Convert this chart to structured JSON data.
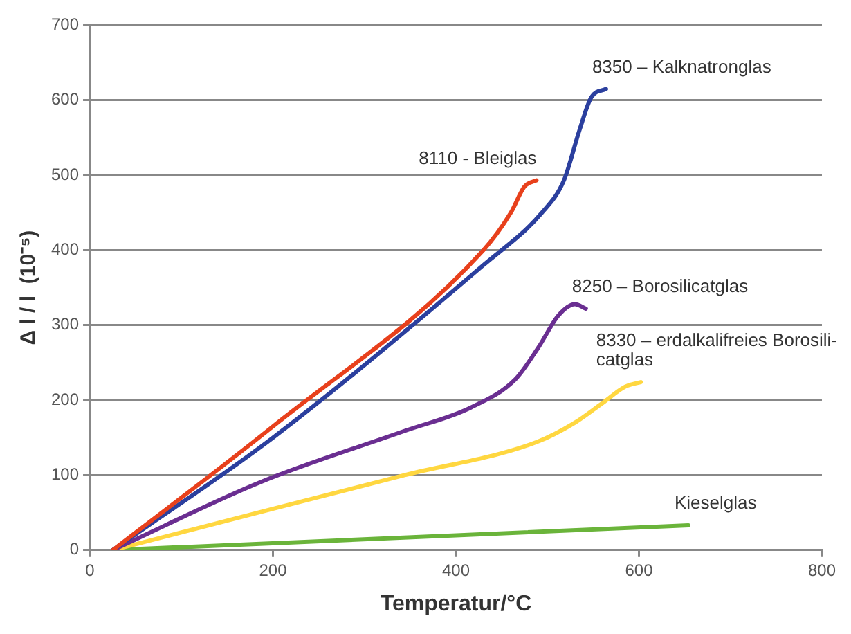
{
  "chart_data": {
    "type": "line",
    "xlabel": "Temperatur/°C",
    "ylabel": "Δ l / l  (10⁻⁵)",
    "xlim": [
      0,
      800
    ],
    "xticks": [
      0,
      200,
      400,
      600,
      800
    ],
    "ylim": [
      0,
      700
    ],
    "yticks": [
      0,
      100,
      200,
      300,
      400,
      500,
      600,
      700
    ],
    "grid": "y",
    "legend": false,
    "marker": "none",
    "line_style": "solid",
    "series": [
      {
        "name": "8110 - Bleiglas",
        "color": "#e8401c",
        "x": [
          25,
          200,
          430,
          460,
          475,
          488
        ],
        "values": [
          0,
          165,
          400,
          450,
          485,
          493
        ]
      },
      {
        "name": "8350 – Kalknatronglas",
        "color": "#2b3f9e",
        "x": [
          25,
          200,
          430,
          494,
          518,
          535,
          548,
          564
        ],
        "values": [
          0,
          150,
          380,
          450,
          493,
          560,
          604,
          615
        ]
      },
      {
        "name": "8250 – Borosilicatglas",
        "color": "#6a2e91",
        "x": [
          25,
          187,
          344,
          416,
          465,
          490,
          512,
          530,
          542
        ],
        "values": [
          0,
          91,
          159,
          190,
          228,
          270,
          313,
          328,
          322
        ]
      },
      {
        "name": "8330 – erdalkalifreies Borosili-\ncatglas",
        "color": "#ffd740",
        "x": [
          25,
          200,
          344,
          488,
          530,
          560,
          585,
          602
        ],
        "values": [
          0,
          55,
          100,
          144,
          170,
          196,
          218,
          224
        ]
      },
      {
        "name": "Kieselglas",
        "color": "#6ab43a",
        "x": [
          25,
          654
        ],
        "values": [
          0,
          33
        ]
      }
    ]
  }
}
